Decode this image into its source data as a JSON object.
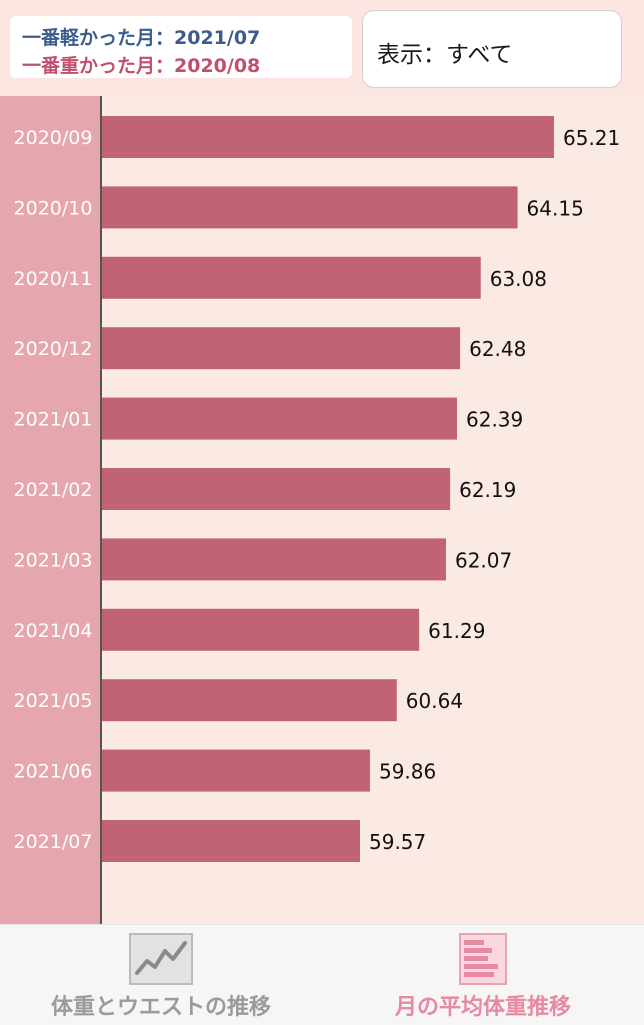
{
  "header": {
    "lightest_month": "一番軽かった月：2021/07",
    "heaviest_month": "一番重かった月：2020/08",
    "display_select": "表示：すべて"
  },
  "colors": {
    "bar": "#c06372",
    "label_column": "#e5a6ae",
    "chart_background": "#fbe9e4",
    "lightest_text": "#3c5d8c",
    "heaviest_text": "#c0506e",
    "active_tab": "#e58aa0",
    "inactive_tab": "#9a9a9a"
  },
  "chart_data": {
    "type": "bar",
    "orientation": "horizontal",
    "categories": [
      "2020/09",
      "2020/10",
      "2020/11",
      "2020/12",
      "2021/01",
      "2021/02",
      "2021/03",
      "2021/04",
      "2021/05",
      "2021/06",
      "2021/07"
    ],
    "value_labels": [
      "65.21",
      "64.15",
      "63.08",
      "62.48",
      "62.39",
      "62.19",
      "62.07",
      "61.29",
      "60.64",
      "59.86",
      "59.57"
    ],
    "values": [
      65.21,
      64.15,
      63.08,
      62.48,
      62.39,
      62.19,
      62.07,
      61.29,
      60.64,
      59.86,
      59.57
    ],
    "title": "",
    "xlabel": "",
    "ylabel": "",
    "grid": false,
    "legend": "none"
  },
  "tabs": [
    {
      "label": "体重とウエストの推移",
      "icon": "line-chart-icon",
      "active": false
    },
    {
      "label": "月の平均体重推移",
      "icon": "bar-chart-icon",
      "active": true
    }
  ]
}
